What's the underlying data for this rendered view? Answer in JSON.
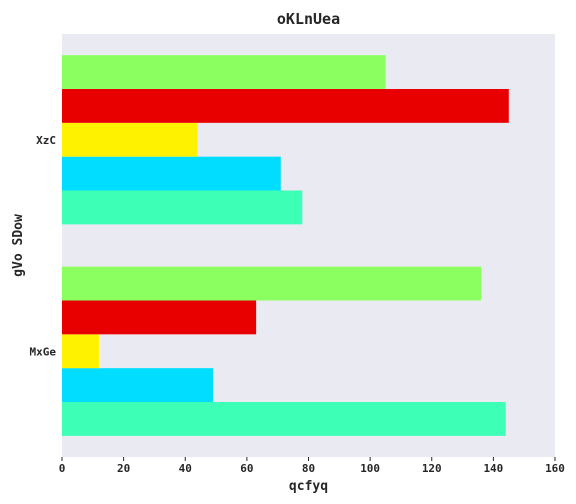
{
  "chart_data": {
    "type": "bar",
    "orientation": "horizontal",
    "title": "oKLnUea",
    "xlabel": "qcfyq",
    "ylabel": "gVo SDow",
    "categories": [
      "MxGe",
      "XzC"
    ],
    "series": [
      {
        "values": [
          144,
          78
        ],
        "color": "#3dffb5"
      },
      {
        "values": [
          49,
          71
        ],
        "color": "#00ddff"
      },
      {
        "values": [
          12,
          44
        ],
        "color": "#fff200"
      },
      {
        "values": [
          63,
          145
        ],
        "color": "#e80000"
      },
      {
        "values": [
          136,
          105
        ],
        "color": "#8cff60"
      }
    ],
    "xlim": [
      0,
      160
    ],
    "xticks": [
      "0",
      "20",
      "40",
      "60",
      "80",
      "100",
      "120",
      "140",
      "160"
    ],
    "grid": false,
    "plot_background": "#eaeaf2"
  }
}
